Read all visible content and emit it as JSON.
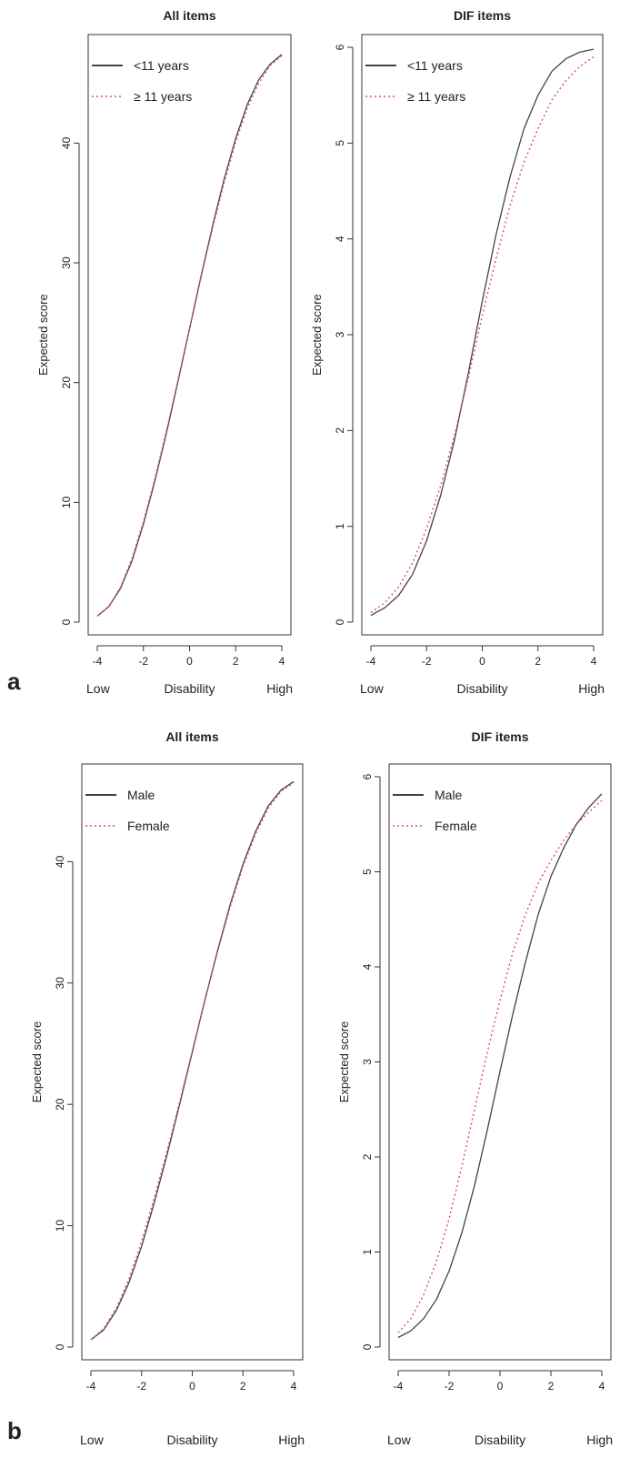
{
  "figure": {
    "panel_labels": [
      "a",
      "b"
    ]
  },
  "colors": {
    "solid": "#444444",
    "dotted": "#e05050",
    "axis": "#333333"
  },
  "chart_data": [
    {
      "type": "line",
      "title": "All items",
      "ylabel": "Expected score",
      "bottom_labels": [
        "Low",
        "Disability",
        "High"
      ],
      "xlim": [
        -4,
        4
      ],
      "ylim": [
        0,
        48
      ],
      "xticks": [
        -4,
        -2,
        0,
        2,
        4
      ],
      "yticks": [
        0,
        10,
        20,
        30,
        40
      ],
      "legend": "top-left",
      "series": [
        {
          "name": "<11 years",
          "style": "solid",
          "x": [
            -4,
            -3.5,
            -3,
            -2.5,
            -2,
            -1.5,
            -1,
            -0.5,
            0,
            0.5,
            1,
            1.5,
            2,
            2.5,
            3,
            3.5,
            4
          ],
          "y": [
            0.5,
            1.3,
            2.8,
            5.1,
            8.2,
            11.8,
            15.8,
            20.1,
            24.5,
            28.9,
            33.1,
            37.0,
            40.4,
            43.2,
            45.3,
            46.6,
            47.4
          ]
        },
        {
          "name": "≥ 11 years",
          "style": "dotted",
          "x": [
            -4,
            -3.5,
            -3,
            -2.5,
            -2,
            -1.5,
            -1,
            -0.5,
            0,
            0.5,
            1,
            1.5,
            2,
            2.5,
            3,
            3.5,
            4
          ],
          "y": [
            0.5,
            1.3,
            2.9,
            5.3,
            8.4,
            12.0,
            16.0,
            20.2,
            24.5,
            28.8,
            32.9,
            36.7,
            40.1,
            42.9,
            45.0,
            46.5,
            47.3
          ]
        }
      ]
    },
    {
      "type": "line",
      "title": "DIF items",
      "ylabel": "Expected score",
      "bottom_labels": [
        "Low",
        "Disability",
        "High"
      ],
      "xlim": [
        -4,
        4
      ],
      "ylim": [
        0,
        6
      ],
      "xticks": [
        -4,
        -2,
        0,
        2,
        4
      ],
      "yticks": [
        0,
        1,
        2,
        3,
        4,
        5,
        6
      ],
      "legend": "top-left",
      "series": [
        {
          "name": "<11 years",
          "style": "solid",
          "x": [
            -4,
            -3.5,
            -3,
            -2.5,
            -2,
            -1.5,
            -1,
            -0.5,
            0,
            0.5,
            1,
            1.5,
            2,
            2.5,
            3,
            3.5,
            4
          ],
          "y": [
            0.07,
            0.15,
            0.28,
            0.5,
            0.85,
            1.32,
            1.9,
            2.6,
            3.35,
            4.05,
            4.65,
            5.15,
            5.5,
            5.75,
            5.88,
            5.95,
            5.98
          ]
        },
        {
          "name": "≥ 11 years",
          "style": "dotted",
          "x": [
            -4,
            -3.5,
            -3,
            -2.5,
            -2,
            -1.5,
            -1,
            -0.5,
            0,
            0.5,
            1,
            1.5,
            2,
            2.5,
            3,
            3.5,
            4
          ],
          "y": [
            0.1,
            0.2,
            0.37,
            0.62,
            0.98,
            1.42,
            1.95,
            2.55,
            3.2,
            3.8,
            4.35,
            4.8,
            5.15,
            5.45,
            5.65,
            5.8,
            5.9
          ]
        }
      ]
    },
    {
      "type": "line",
      "title": "All items",
      "ylabel": "Expected score",
      "bottom_labels": [
        "Low",
        "Disability",
        "High"
      ],
      "xlim": [
        -4,
        4
      ],
      "ylim": [
        0,
        47
      ],
      "xticks": [
        -4,
        -2,
        0,
        2,
        4
      ],
      "yticks": [
        0,
        10,
        20,
        30,
        40
      ],
      "legend": "top-left",
      "series": [
        {
          "name": "Male",
          "style": "solid",
          "x": [
            -4,
            -3.5,
            -3,
            -2.5,
            -2,
            -1.5,
            -1,
            -0.5,
            0,
            0.5,
            1,
            1.5,
            2,
            2.5,
            3,
            3.5,
            4
          ],
          "y": [
            0.6,
            1.4,
            3.0,
            5.3,
            8.3,
            11.9,
            15.8,
            20.0,
            24.3,
            28.6,
            32.7,
            36.5,
            39.8,
            42.5,
            44.6,
            45.9,
            46.6
          ]
        },
        {
          "name": "Female",
          "style": "dotted",
          "x": [
            -4,
            -3.5,
            -3,
            -2.5,
            -2,
            -1.5,
            -1,
            -0.5,
            0,
            0.5,
            1,
            1.5,
            2,
            2.5,
            3,
            3.5,
            4
          ],
          "y": [
            0.6,
            1.5,
            3.2,
            5.6,
            8.7,
            12.3,
            16.1,
            20.2,
            24.4,
            28.6,
            32.6,
            36.3,
            39.6,
            42.3,
            44.4,
            45.8,
            46.5
          ]
        }
      ]
    },
    {
      "type": "line",
      "title": "DIF items",
      "ylabel": "Expected score",
      "bottom_labels": [
        "Low",
        "Disability",
        "High"
      ],
      "xlim": [
        -4,
        4
      ],
      "ylim": [
        0,
        6
      ],
      "xticks": [
        -4,
        -2,
        0,
        2,
        4
      ],
      "yticks": [
        0,
        1,
        2,
        3,
        4,
        5,
        6
      ],
      "legend": "top-left",
      "series": [
        {
          "name": "Male",
          "style": "solid",
          "x": [
            -4,
            -3.5,
            -3,
            -2.5,
            -2,
            -1.5,
            -1,
            -0.5,
            0,
            0.5,
            1,
            1.5,
            2,
            2.5,
            3,
            3.5,
            4
          ],
          "y": [
            0.1,
            0.17,
            0.3,
            0.5,
            0.8,
            1.2,
            1.7,
            2.28,
            2.9,
            3.5,
            4.05,
            4.55,
            4.95,
            5.25,
            5.5,
            5.68,
            5.82
          ]
        },
        {
          "name": "Female",
          "style": "dotted",
          "x": [
            -4,
            -3.5,
            -3,
            -2.5,
            -2,
            -1.5,
            -1,
            -0.5,
            0,
            0.5,
            1,
            1.5,
            2,
            2.5,
            3,
            3.5,
            4
          ],
          "y": [
            0.15,
            0.3,
            0.55,
            0.9,
            1.35,
            1.9,
            2.5,
            3.1,
            3.65,
            4.15,
            4.55,
            4.88,
            5.12,
            5.33,
            5.5,
            5.63,
            5.75
          ]
        }
      ]
    }
  ]
}
